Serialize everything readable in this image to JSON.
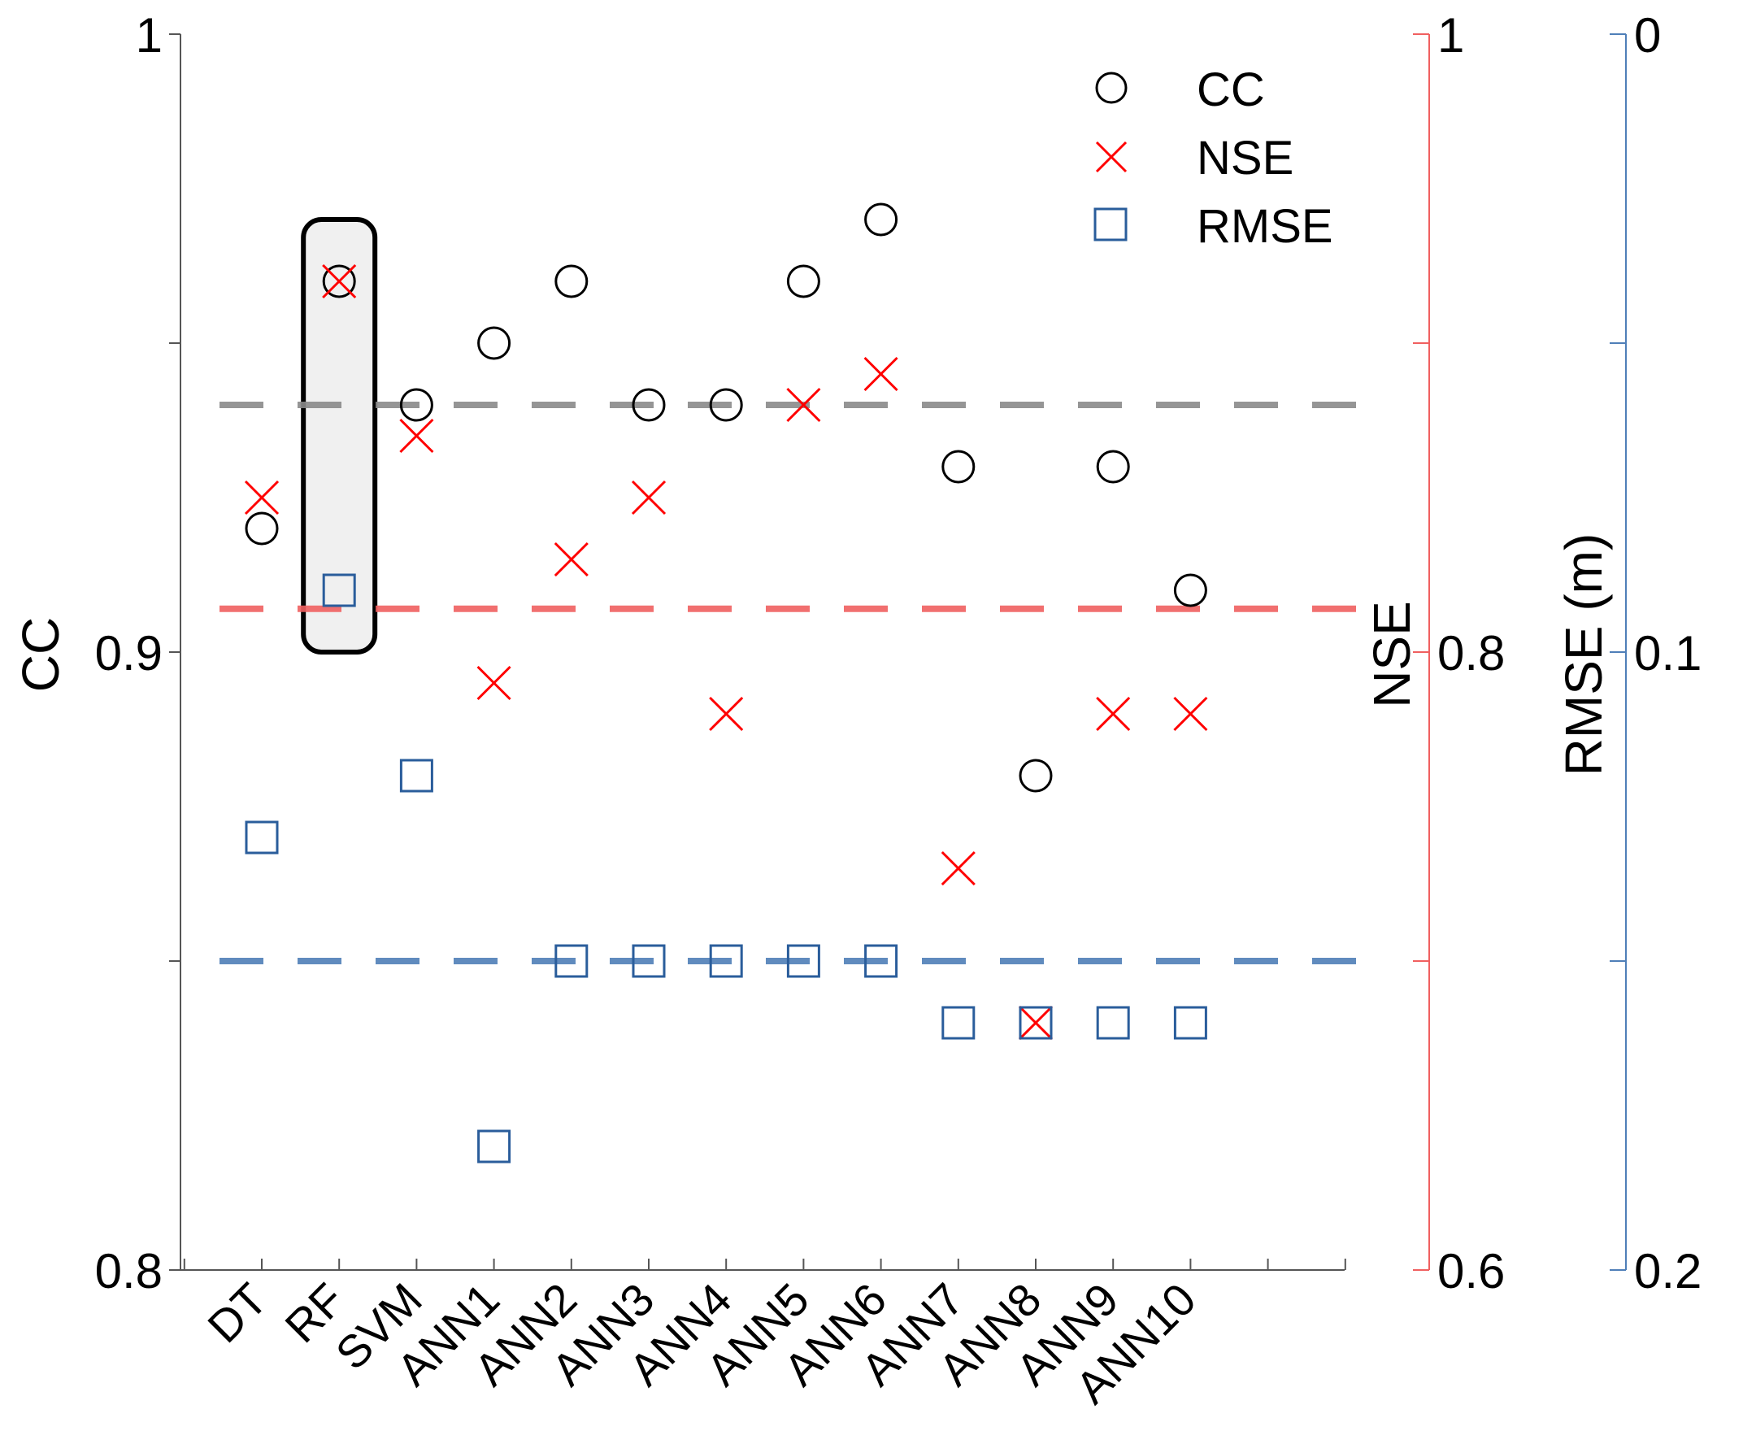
{
  "chart_data": {
    "type": "scatter",
    "categories": [
      "DT",
      "RF",
      "SVM",
      "ANN1",
      "ANN2",
      "ANN3",
      "ANN4",
      "ANN5",
      "ANN6",
      "ANN7",
      "ANN8",
      "ANN9",
      "ANN10"
    ],
    "series": [
      {
        "name": "CC",
        "axis": "left",
        "marker": "circle",
        "color": "#000000",
        "values": [
          0.92,
          0.96,
          0.94,
          0.95,
          0.96,
          0.94,
          0.94,
          0.96,
          0.97,
          0.93,
          0.88,
          0.93,
          0.91
        ]
      },
      {
        "name": "NSE",
        "axis": "nse",
        "marker": "x",
        "color": "#ff0000",
        "values": [
          0.85,
          0.92,
          0.87,
          0.79,
          0.83,
          0.85,
          0.78,
          0.88,
          0.89,
          0.73,
          0.68,
          0.78,
          0.78
        ]
      },
      {
        "name": "RMSE",
        "axis": "rmse",
        "marker": "square",
        "color": "#2a5d9b",
        "values": [
          0.13,
          0.09,
          0.12,
          0.18,
          0.15,
          0.15,
          0.15,
          0.15,
          0.15,
          0.16,
          0.16,
          0.16,
          0.16
        ]
      }
    ],
    "reference_lines": [
      {
        "axis": "left",
        "value": 0.94,
        "color": "#8a8a8a"
      },
      {
        "axis": "nse",
        "value": 0.814,
        "color": "#f06060"
      },
      {
        "axis": "rmse",
        "value": 0.15,
        "color": "#4f7fb8"
      }
    ],
    "highlighted_category": "RF",
    "axes": {
      "left": {
        "label": "CC",
        "ylim": [
          0.8,
          1.0
        ],
        "ticks": [
          "0.8",
          "",
          "0.9",
          "",
          "1"
        ],
        "color": "#555555"
      },
      "nse": {
        "label": "NSE",
        "ylim": [
          0.6,
          1.0
        ],
        "ticks": [
          "0.6",
          "",
          "0.8",
          "",
          "1"
        ],
        "color": "#f06060"
      },
      "rmse": {
        "label": "RMSE (m)",
        "ylim": [
          0.2,
          0.0
        ],
        "ticks": [
          "0.2",
          "",
          "0.1",
          "",
          "0"
        ],
        "color": "#4f7fb8"
      }
    },
    "legend": {
      "position": "top-right",
      "entries": [
        "CC",
        "NSE",
        "RMSE"
      ]
    },
    "grid": false
  }
}
